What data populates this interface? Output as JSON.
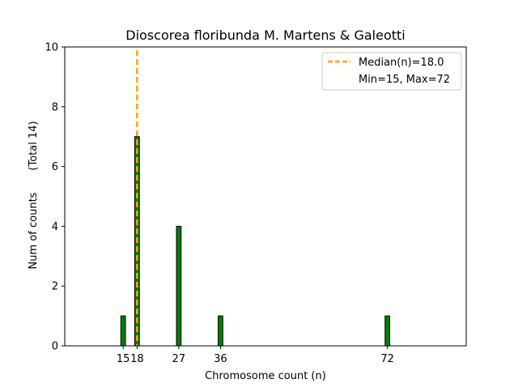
{
  "chart_data": {
    "type": "bar",
    "title": "Dioscorea floribunda M. Martens & Galeotti",
    "xlabel": "Chromosome count (n)",
    "ylabel": "Num of counts",
    "ylabel_total": "(Total 14)",
    "x": [
      15,
      18,
      27,
      36,
      72
    ],
    "values": [
      1,
      7,
      4,
      1,
      1
    ],
    "xticks": [
      "15",
      "18",
      "27",
      "36",
      "72"
    ],
    "yticks": [
      "0",
      "2",
      "4",
      "6",
      "8",
      "10"
    ],
    "xlim": [
      2.4,
      89.0
    ],
    "ylim": [
      0,
      10
    ],
    "median": 18.0,
    "legend": {
      "placement": "upper-right",
      "median_label": "Median(n)=18.0",
      "range_label": "Min=15, Max=72"
    },
    "colors": {
      "bar": "#008000",
      "bar_edge": "#000000",
      "median_line": "#ffa500"
    },
    "grid": false
  }
}
